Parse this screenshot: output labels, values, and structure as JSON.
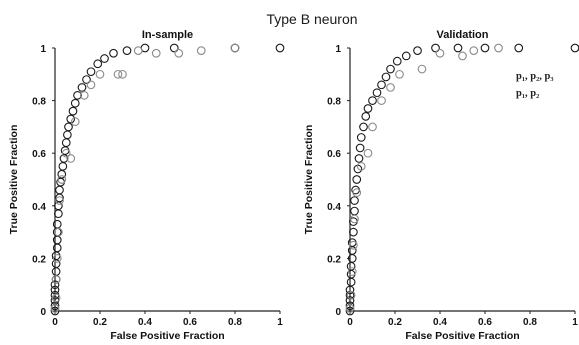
{
  "suptitle": "Type B neuron",
  "chart_data": [
    {
      "type": "scatter",
      "title": "In-sample",
      "xlabel": "False Positive Fraction",
      "ylabel": "True Positive Fraction",
      "xlim": [
        0,
        1
      ],
      "ylim": [
        0,
        1
      ],
      "xticks": [
        "0",
        "0.2",
        "0.4",
        "0.6",
        "0.8",
        "1"
      ],
      "yticks": [
        "0",
        "0.2",
        "0.4",
        "0.6",
        "0.8",
        "1"
      ],
      "grid": false,
      "series": [
        {
          "color": "#1a1a1a",
          "points": [
            [
              0,
              0
            ],
            [
              0,
              0.02
            ],
            [
              0,
              0.04
            ],
            [
              0,
              0.06
            ],
            [
              0,
              0.08
            ],
            [
              0,
              0.1
            ],
            [
              0.005,
              0.12
            ],
            [
              0.005,
              0.15
            ],
            [
              0.005,
              0.18
            ],
            [
              0.005,
              0.21
            ],
            [
              0.01,
              0.24
            ],
            [
              0.01,
              0.27
            ],
            [
              0.01,
              0.3
            ],
            [
              0.01,
              0.33
            ],
            [
              0.015,
              0.37
            ],
            [
              0.015,
              0.4
            ],
            [
              0.02,
              0.43
            ],
            [
              0.02,
              0.46
            ],
            [
              0.025,
              0.49
            ],
            [
              0.03,
              0.52
            ],
            [
              0.035,
              0.55
            ],
            [
              0.04,
              0.58
            ],
            [
              0.045,
              0.61
            ],
            [
              0.05,
              0.64
            ],
            [
              0.055,
              0.67
            ],
            [
              0.06,
              0.7
            ],
            [
              0.07,
              0.73
            ],
            [
              0.08,
              0.76
            ],
            [
              0.09,
              0.79
            ],
            [
              0.1,
              0.82
            ],
            [
              0.12,
              0.85
            ],
            [
              0.14,
              0.88
            ],
            [
              0.16,
              0.91
            ],
            [
              0.19,
              0.94
            ],
            [
              0.22,
              0.96
            ],
            [
              0.26,
              0.98
            ],
            [
              0.32,
              0.99
            ],
            [
              0.4,
              1.0
            ],
            [
              0.53,
              1.0
            ],
            [
              0.8,
              1.0
            ],
            [
              1.0,
              1.0
            ]
          ]
        },
        {
          "color": "#8a8a8a",
          "points": [
            [
              0,
              0.01
            ],
            [
              0.005,
              0.05
            ],
            [
              0.005,
              0.12
            ],
            [
              0.01,
              0.2
            ],
            [
              0.015,
              0.3
            ],
            [
              0.02,
              0.42
            ],
            [
              0.03,
              0.5
            ],
            [
              0.05,
              0.6
            ],
            [
              0.07,
              0.58
            ],
            [
              0.09,
              0.72
            ],
            [
              0.13,
              0.82
            ],
            [
              0.16,
              0.86
            ],
            [
              0.2,
              0.9
            ],
            [
              0.28,
              0.9
            ],
            [
              0.3,
              0.9
            ],
            [
              0.37,
              0.99
            ],
            [
              0.45,
              0.98
            ],
            [
              0.55,
              0.98
            ],
            [
              0.65,
              0.99
            ],
            [
              0.8,
              1.0
            ]
          ]
        }
      ]
    },
    {
      "type": "scatter",
      "title": "Validation",
      "xlabel": "False Positive Fraction",
      "ylabel": "True Positive Fraction",
      "xlim": [
        0,
        1
      ],
      "ylim": [
        0,
        1
      ],
      "xticks": [
        "0",
        "0.2",
        "0.4",
        "0.6",
        "0.8",
        "1"
      ],
      "yticks": [
        "0",
        "0.2",
        "0.4",
        "0.6",
        "0.8",
        "1"
      ],
      "grid": false,
      "legend_position": "top-right",
      "legend": [
        {
          "label": "p₁, p₂, p₃",
          "color": "#1a1a1a"
        },
        {
          "label": "p₁, p₂",
          "color": "#8a8a8a"
        }
      ],
      "series": [
        {
          "color": "#1a1a1a",
          "points": [
            [
              0,
              0
            ],
            [
              0,
              0.02
            ],
            [
              0,
              0.04
            ],
            [
              0,
              0.06
            ],
            [
              0,
              0.08
            ],
            [
              0.005,
              0.11
            ],
            [
              0.005,
              0.14
            ],
            [
              0.005,
              0.17
            ],
            [
              0.01,
              0.2
            ],
            [
              0.01,
              0.23
            ],
            [
              0.01,
              0.26
            ],
            [
              0.015,
              0.3
            ],
            [
              0.015,
              0.34
            ],
            [
              0.02,
              0.38
            ],
            [
              0.02,
              0.42
            ],
            [
              0.025,
              0.46
            ],
            [
              0.03,
              0.5
            ],
            [
              0.035,
              0.54
            ],
            [
              0.04,
              0.58
            ],
            [
              0.045,
              0.62
            ],
            [
              0.05,
              0.66
            ],
            [
              0.06,
              0.7
            ],
            [
              0.07,
              0.74
            ],
            [
              0.08,
              0.77
            ],
            [
              0.1,
              0.8
            ],
            [
              0.12,
              0.83
            ],
            [
              0.14,
              0.86
            ],
            [
              0.16,
              0.89
            ],
            [
              0.18,
              0.92
            ],
            [
              0.21,
              0.95
            ],
            [
              0.25,
              0.97
            ],
            [
              0.3,
              0.99
            ],
            [
              0.38,
              1.0
            ],
            [
              0.48,
              1.0
            ],
            [
              0.6,
              1.0
            ],
            [
              0.75,
              1.0
            ],
            [
              1.0,
              1.0
            ]
          ]
        },
        {
          "color": "#8a8a8a",
          "points": [
            [
              0,
              0.01
            ],
            [
              0.005,
              0.06
            ],
            [
              0.01,
              0.15
            ],
            [
              0.015,
              0.25
            ],
            [
              0.02,
              0.35
            ],
            [
              0.03,
              0.45
            ],
            [
              0.05,
              0.55
            ],
            [
              0.08,
              0.6
            ],
            [
              0.1,
              0.7
            ],
            [
              0.14,
              0.8
            ],
            [
              0.18,
              0.85
            ],
            [
              0.22,
              0.9
            ],
            [
              0.32,
              0.92
            ],
            [
              0.4,
              0.98
            ],
            [
              0.5,
              0.97
            ],
            [
              0.55,
              0.99
            ],
            [
              0.66,
              1.0
            ]
          ]
        }
      ]
    }
  ]
}
